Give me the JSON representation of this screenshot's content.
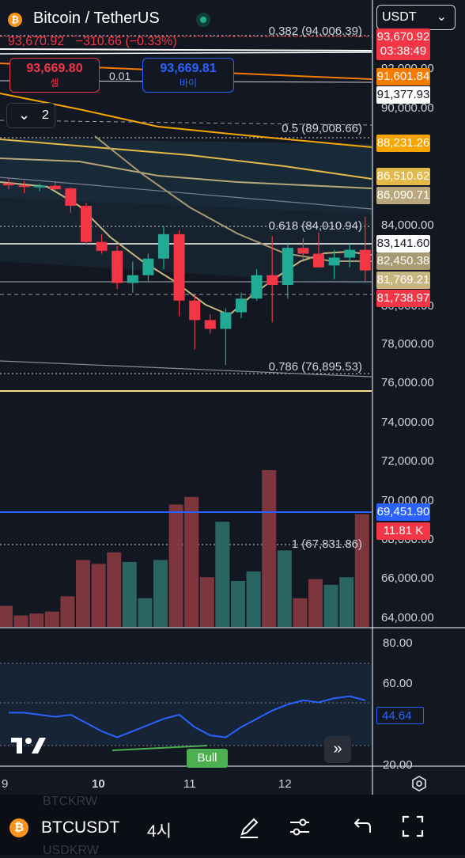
{
  "header": {
    "title": "Bitcoin / TetherUS",
    "currency": "USDT",
    "last_price": "93,670.92",
    "change": "−310.66 (−0.33%)",
    "sell_price": "93,669.80",
    "sell_label": "셀",
    "spread": "0.01",
    "buy_price": "93,669.81",
    "buy_label": "바이",
    "indicator_count": "2"
  },
  "price_axis": {
    "levels": [
      "92,000.00",
      "90,000.00",
      "84,000.00",
      "80,000.00",
      "78,000.00",
      "76,000.00",
      "74,000.00",
      "72,000.00",
      "70,000.00",
      "68,000.00",
      "66,000.00",
      "64,000.00"
    ],
    "tags": [
      {
        "text": "93,670.92",
        "bg": "#f23645",
        "fg": "#ffffff"
      },
      {
        "text": "03:38:49",
        "bg": "#f23645",
        "fg": "#ffffff"
      },
      {
        "text": "91,601.84",
        "bg": "#f57c00",
        "fg": "#ffffff"
      },
      {
        "text": "91,377.93",
        "bg": "#ffffff",
        "fg": "#131722"
      },
      {
        "text": "88,231.26",
        "bg": "#f7a600",
        "fg": "#ffffff"
      },
      {
        "text": "86,510.62",
        "bg": "#e5b84b",
        "fg": "#ffffff"
      },
      {
        "text": "86,090.71",
        "bg": "#b8a77a",
        "fg": "#ffffff"
      },
      {
        "text": "83,141.60",
        "bg": "#ffffff",
        "fg": "#131722"
      },
      {
        "text": "82,450.38",
        "bg": "#a89a72",
        "fg": "#ffffff"
      },
      {
        "text": "81,769.21",
        "bg": "#c8b682",
        "fg": "#ffffff"
      },
      {
        "text": "81,738.97",
        "bg": "#f23645",
        "fg": "#ffffff"
      },
      {
        "text": "69,451.90",
        "bg": "#2962ff",
        "fg": "#ffffff"
      },
      {
        "text": "11.81 K",
        "bg": "#f23645",
        "fg": "#ffffff"
      }
    ]
  },
  "fib_levels": [
    {
      "label": "0.382 (94,006.39)"
    },
    {
      "label": "0.5 (89,008.66)"
    },
    {
      "label": "0.618 (84,010.94)"
    },
    {
      "label": "0.786 (76,895.53)"
    },
    {
      "label": "1 (67,831.86)"
    }
  ],
  "time_axis": [
    "9",
    "10",
    "11",
    "12"
  ],
  "oscillator": {
    "levels": [
      "80.00",
      "60.00",
      "20.00"
    ],
    "current": "44.64",
    "divergence_label": "Bull",
    "line_color": "#2962ff"
  },
  "candles": [
    {
      "o": 86200,
      "h": 86450,
      "l": 85900,
      "c": 86100
    },
    {
      "o": 86100,
      "h": 86300,
      "l": 85700,
      "c": 86050
    },
    {
      "o": 86050,
      "h": 86200,
      "l": 85800,
      "c": 86080
    },
    {
      "o": 86080,
      "h": 86250,
      "l": 85850,
      "c": 85900
    },
    {
      "o": 85950,
      "h": 86000,
      "l": 84700,
      "c": 85050
    },
    {
      "o": 85050,
      "h": 85200,
      "l": 83100,
      "c": 83200
    },
    {
      "o": 83200,
      "h": 83600,
      "l": 82600,
      "c": 82750
    },
    {
      "o": 82750,
      "h": 83000,
      "l": 80800,
      "c": 81100
    },
    {
      "o": 81100,
      "h": 82200,
      "l": 80600,
      "c": 81500
    },
    {
      "o": 81500,
      "h": 82600,
      "l": 81200,
      "c": 82350
    },
    {
      "o": 82350,
      "h": 84000,
      "l": 81800,
      "c": 83600
    },
    {
      "o": 83600,
      "h": 83800,
      "l": 79400,
      "c": 80200
    },
    {
      "o": 80200,
      "h": 80500,
      "l": 77700,
      "c": 79200
    },
    {
      "o": 79200,
      "h": 79500,
      "l": 78500,
      "c": 78750
    },
    {
      "o": 78750,
      "h": 79800,
      "l": 76900,
      "c": 79600
    },
    {
      "o": 79600,
      "h": 80600,
      "l": 79300,
      "c": 80300
    },
    {
      "o": 80300,
      "h": 81800,
      "l": 80200,
      "c": 81500
    },
    {
      "o": 81500,
      "h": 83500,
      "l": 79100,
      "c": 81000
    },
    {
      "o": 81000,
      "h": 83100,
      "l": 80300,
      "c": 82900
    },
    {
      "o": 82900,
      "h": 83400,
      "l": 82300,
      "c": 82600
    },
    {
      "o": 82600,
      "h": 83700,
      "l": 81900,
      "c": 81900
    },
    {
      "o": 82000,
      "h": 82800,
      "l": 81300,
      "c": 82400
    },
    {
      "o": 82400,
      "h": 83100,
      "l": 81900,
      "c": 82800
    },
    {
      "o": 82800,
      "h": 84500,
      "l": 81200,
      "c": 81740
    }
  ],
  "volumes": [
    {
      "v": 1100,
      "up": false
    },
    {
      "v": 600,
      "up": false
    },
    {
      "v": 700,
      "up": false
    },
    {
      "v": 800,
      "up": false
    },
    {
      "v": 1600,
      "up": false
    },
    {
      "v": 3500,
      "up": false
    },
    {
      "v": 3300,
      "up": false
    },
    {
      "v": 3900,
      "up": false
    },
    {
      "v": 3400,
      "up": true
    },
    {
      "v": 1500,
      "up": true
    },
    {
      "v": 3500,
      "up": true
    },
    {
      "v": 6400,
      "up": false
    },
    {
      "v": 6800,
      "up": false
    },
    {
      "v": 2600,
      "up": false
    },
    {
      "v": 5500,
      "up": true
    },
    {
      "v": 2400,
      "up": true
    },
    {
      "v": 2900,
      "up": true
    },
    {
      "v": 8200,
      "up": false
    },
    {
      "v": 4000,
      "up": true
    },
    {
      "v": 1500,
      "up": false
    },
    {
      "v": 2500,
      "up": false
    },
    {
      "v": 2200,
      "up": true
    },
    {
      "v": 2600,
      "up": true
    },
    {
      "v": 5900,
      "up": false
    }
  ],
  "osc_values": [
    36,
    36,
    35,
    34,
    35,
    31,
    27,
    24,
    27,
    30,
    33,
    35,
    29,
    25,
    24,
    29,
    33,
    37,
    40,
    42,
    41,
    43,
    44,
    42
  ],
  "bottom_bar": {
    "symbol": "BTCUSDT",
    "interval": "4시",
    "ghost_top": "BTCKRW",
    "ghost_bottom": "USDKRW"
  }
}
